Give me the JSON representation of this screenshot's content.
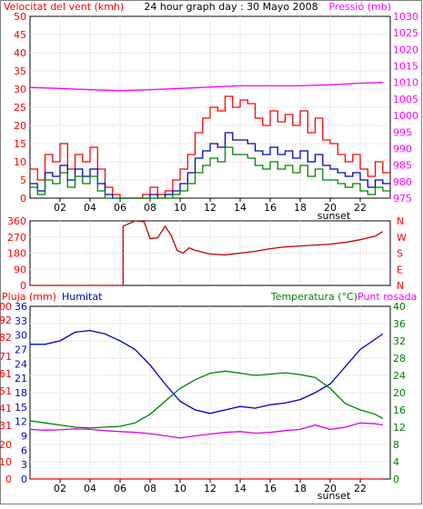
{
  "chart_data": [
    {
      "type": "line",
      "title": "24 hour graph day : 30 Mayo 2008",
      "ylabel": "Velocitat del vent (kmh)",
      "y2label": "Pressió (mb)",
      "x_ticks": [
        "02",
        "04",
        "06",
        "08",
        "10",
        "12",
        "14",
        "16",
        "18",
        "20",
        "22"
      ],
      "x_marker": "sunset",
      "xlim": [
        0,
        24
      ],
      "ylim": [
        0,
        50
      ],
      "y_ticks": [
        0,
        5,
        10,
        15,
        20,
        25,
        30,
        35,
        40,
        45,
        50
      ],
      "y2lim": [
        975,
        1030
      ],
      "y2_ticks": [
        975,
        980,
        985,
        990,
        995,
        1000,
        1005,
        1010,
        1015,
        1020,
        1025,
        1030
      ],
      "grid": true,
      "series": [
        {
          "axis": "left",
          "color": "#ff0000",
          "x": [
            0,
            0.5,
            1,
            1.5,
            2,
            2.5,
            3,
            3.5,
            4,
            4.5,
            5,
            5.5,
            6,
            6.5,
            7,
            7.5,
            8,
            8.5,
            9,
            9.5,
            10,
            10.5,
            11,
            11.5,
            12,
            12.5,
            13,
            13.5,
            14,
            14.5,
            15,
            15.5,
            16,
            16.5,
            17,
            17.5,
            18,
            18.5,
            19,
            19.5,
            20,
            20.5,
            21,
            21.5,
            22,
            22.5,
            23,
            23.5
          ],
          "values": [
            8,
            5,
            12,
            10,
            15,
            8,
            12,
            10,
            14,
            8,
            3,
            1,
            0,
            0,
            0,
            1,
            3,
            1,
            2,
            5,
            8,
            12,
            18,
            22,
            25,
            24,
            28,
            25,
            27,
            26,
            22,
            20,
            24,
            21,
            23,
            20,
            24,
            18,
            22,
            16,
            15,
            12,
            10,
            12,
            8,
            6,
            10,
            7
          ]
        },
        {
          "axis": "left",
          "color": "#0000c0",
          "x": [
            0,
            0.5,
            1,
            1.5,
            2,
            2.5,
            3,
            3.5,
            4,
            4.5,
            5,
            5.5,
            6,
            6.5,
            7,
            7.5,
            8,
            8.5,
            9,
            9.5,
            10,
            10.5,
            11,
            11.5,
            12,
            12.5,
            13,
            13.5,
            14,
            14.5,
            15,
            15.5,
            16,
            16.5,
            17,
            17.5,
            18,
            18.5,
            19,
            19.5,
            20,
            20.5,
            21,
            21.5,
            22,
            22.5,
            23,
            23.5
          ],
          "values": [
            4,
            2,
            7,
            6,
            9,
            5,
            8,
            6,
            8,
            4,
            1,
            0,
            0,
            0,
            0,
            0,
            1,
            0,
            1,
            2,
            4,
            7,
            11,
            13,
            15,
            14,
            18,
            16,
            16,
            15,
            13,
            12,
            14,
            12,
            13,
            11,
            13,
            10,
            12,
            9,
            8,
            7,
            6,
            7,
            5,
            3,
            5,
            4
          ]
        },
        {
          "axis": "left",
          "color": "#008000",
          "x": [
            0,
            0.5,
            1,
            1.5,
            2,
            2.5,
            3,
            3.5,
            4,
            4.5,
            5,
            5.5,
            6,
            6.5,
            7,
            7.5,
            8,
            8.5,
            9,
            9.5,
            10,
            10.5,
            11,
            11.5,
            12,
            12.5,
            13,
            13.5,
            14,
            14.5,
            15,
            15.5,
            16,
            16.5,
            17,
            17.5,
            18,
            18.5,
            19,
            19.5,
            20,
            20.5,
            21,
            21.5,
            22,
            22.5,
            23,
            23.5
          ],
          "values": [
            3,
            1,
            5,
            4,
            7,
            3,
            6,
            4,
            6,
            2,
            0,
            0,
            0,
            0,
            0,
            0,
            0,
            0,
            0,
            1,
            2,
            4,
            7,
            9,
            11,
            10,
            14,
            12,
            12,
            11,
            9,
            8,
            10,
            8,
            9,
            7,
            9,
            6,
            8,
            5,
            5,
            4,
            3,
            4,
            2,
            1,
            3,
            2
          ]
        },
        {
          "axis": "right",
          "color": "#ff00ff",
          "x": [
            0,
            2,
            4,
            6,
            8,
            10,
            12,
            14,
            16,
            18,
            20,
            22,
            23.5
          ],
          "values": [
            1008.5,
            1008.2,
            1007.8,
            1007.5,
            1007.8,
            1008.2,
            1008.6,
            1009,
            1009,
            1009,
            1009.3,
            1009.8,
            1010
          ]
        }
      ]
    },
    {
      "type": "line",
      "xlim": [
        0,
        24
      ],
      "ylim": [
        0,
        360
      ],
      "y_ticks": [
        0,
        90,
        180,
        270,
        360
      ],
      "y2_ticks": [
        "N",
        "E",
        "S",
        "W",
        "N"
      ],
      "grid": true,
      "series": [
        {
          "color": "#c00000",
          "x": [
            0,
            6.2,
            6.2,
            7,
            7.6,
            8,
            8.5,
            9,
            9.4,
            9.8,
            10.2,
            10.6,
            11,
            12,
            13,
            14,
            15,
            16,
            17,
            18,
            19,
            20,
            21,
            22,
            23,
            23.5
          ],
          "values": [
            0,
            0,
            330,
            360,
            355,
            260,
            265,
            330,
            280,
            195,
            180,
            210,
            195,
            175,
            170,
            180,
            190,
            205,
            215,
            220,
            225,
            230,
            240,
            255,
            275,
            300
          ]
        }
      ]
    },
    {
      "type": "line",
      "ylabel": "Pluja (mm)",
      "y2label": "Temperatura (°C)",
      "legend": [
        "Humitat",
        "Punt rosada"
      ],
      "x_ticks": [
        "02",
        "04",
        "06",
        "08",
        "10",
        "12",
        "14",
        "16",
        "18",
        "20",
        "22"
      ],
      "x_marker": "sunset",
      "xlim": [
        0,
        24
      ],
      "ylim": [
        0,
        100
      ],
      "y_ticks": [
        0,
        10,
        20,
        31,
        41,
        51,
        61,
        71,
        82,
        92,
        100
      ],
      "y_ticks_alt": [
        0,
        3,
        6,
        9,
        12,
        15,
        18,
        21,
        24,
        27,
        30,
        33,
        36
      ],
      "y2lim": [
        0,
        40
      ],
      "y2_ticks": [
        0,
        4,
        8,
        12,
        16,
        20,
        24,
        28,
        32,
        36,
        40
      ],
      "grid": true,
      "series": [
        {
          "axis": "left",
          "color": "#0000c0",
          "x": [
            0,
            1,
            2,
            3,
            4,
            5,
            6,
            7,
            8,
            9,
            10,
            11,
            12,
            13,
            14,
            15,
            16,
            17,
            18,
            19,
            20,
            21,
            22,
            23,
            23.5
          ],
          "values": [
            78,
            78,
            80,
            85,
            86,
            84,
            80,
            75,
            66,
            55,
            45,
            40,
            38,
            40,
            42,
            41,
            43,
            44,
            46,
            50,
            55,
            65,
            75,
            81,
            84
          ]
        },
        {
          "axis": "right",
          "color": "#008000",
          "x": [
            0,
            1,
            2,
            3,
            4,
            5,
            6,
            7,
            8,
            9,
            10,
            11,
            12,
            13,
            14,
            15,
            16,
            17,
            18,
            19,
            20,
            21,
            22,
            23,
            23.5
          ],
          "values": [
            13.5,
            13,
            12.5,
            12,
            11.8,
            12,
            12.2,
            13,
            15,
            18,
            21,
            23,
            24.5,
            25,
            24.5,
            24,
            24.3,
            24.6,
            24.2,
            23.5,
            21,
            17.5,
            16,
            15,
            14
          ]
        },
        {
          "axis": "right",
          "color": "#e000e0",
          "x": [
            0,
            1,
            2,
            3,
            4,
            5,
            6,
            7,
            8,
            9,
            10,
            11,
            12,
            13,
            14,
            15,
            16,
            17,
            18,
            19,
            20,
            21,
            22,
            23,
            23.5
          ],
          "values": [
            11.5,
            11.3,
            11.4,
            11.6,
            11.5,
            11.2,
            11,
            10.8,
            10.5,
            10,
            9.5,
            10,
            10.4,
            10.8,
            11,
            10.6,
            10.8,
            11.2,
            11.5,
            12.5,
            11.5,
            12,
            13,
            12.8,
            12.5
          ]
        },
        {
          "axis": "left",
          "color": "#ff0000",
          "x": [
            0,
            23.5
          ],
          "values": [
            0,
            0
          ]
        }
      ]
    }
  ]
}
